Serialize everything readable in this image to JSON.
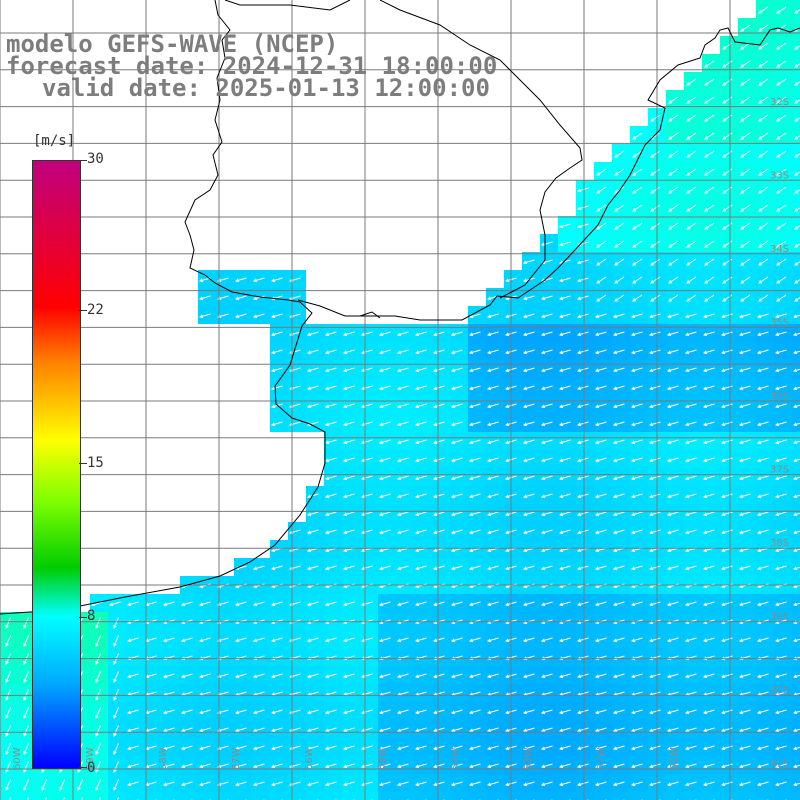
{
  "header": {
    "model": "modelo GEFS-WAVE (NCEP)",
    "forecast": "forecast date: 2024-12-31 18:00:00",
    "valid": "valid date: 2025-01-13 12:00:00"
  },
  "colorbar": {
    "unit": "[m/s]",
    "labels": [
      "30",
      "22",
      "15",
      "8",
      "0"
    ],
    "range": [
      0,
      30
    ],
    "colors": [
      "#0000ff",
      "#00aaff",
      "#00ffff",
      "#00cc00",
      "#7fff00",
      "#ffff00",
      "#ff7f00",
      "#ff0000",
      "#c0007f"
    ]
  },
  "map": {
    "lat_labels": [
      "32S",
      "33S",
      "34S",
      "35S",
      "36S",
      "37S",
      "38S",
      "39S",
      "40S",
      "41S"
    ],
    "lon_labels": [
      "60W",
      "59W",
      "58W",
      "57W",
      "56W",
      "55W",
      "54W",
      "53W",
      "52W",
      "51W"
    ],
    "wind_direction": "from east/northeast toward west/southwest",
    "land_color": "#ffffff",
    "grid_color": "#808080",
    "coast_color": "#000000"
  }
}
